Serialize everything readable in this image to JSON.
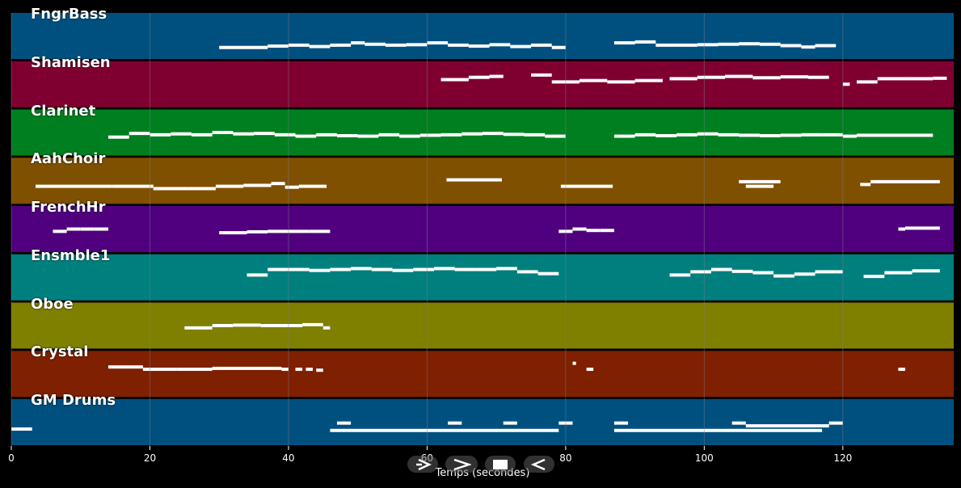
{
  "app": {
    "x_axis_title": "Temps (secondes)",
    "grid_color": "#7f7f8f"
  },
  "transport": {
    "buttons": [
      {
        "name": "step-back-icon",
        "glyph": "step"
      },
      {
        "name": "play-icon",
        "glyph": "play"
      },
      {
        "name": "stop-icon",
        "glyph": "stop"
      },
      {
        "name": "rewind-icon",
        "glyph": "rewind"
      }
    ]
  },
  "chart_data": {
    "type": "piano-roll",
    "xlabel": "Temps (secondes)",
    "xlim": [
      0,
      136
    ],
    "xticks": [
      0,
      20,
      40,
      60,
      80,
      100,
      120
    ],
    "grid": true,
    "tracks": [
      {
        "name": "FngrBass",
        "color": "#00507f",
        "notes": [
          [
            30,
            4,
            0.75
          ],
          [
            34,
            3,
            0.75
          ],
          [
            37,
            3,
            0.72
          ],
          [
            40,
            3,
            0.7
          ],
          [
            43,
            3,
            0.73
          ],
          [
            46,
            3,
            0.7
          ],
          [
            49,
            2,
            0.65
          ],
          [
            51,
            3,
            0.68
          ],
          [
            54,
            3,
            0.7
          ],
          [
            57,
            3,
            0.69
          ],
          [
            60,
            3,
            0.65
          ],
          [
            63,
            3,
            0.7
          ],
          [
            66,
            3,
            0.72
          ],
          [
            69,
            3,
            0.69
          ],
          [
            72,
            3,
            0.73
          ],
          [
            75,
            3,
            0.7
          ],
          [
            78,
            2,
            0.75
          ],
          [
            87,
            3,
            0.65
          ],
          [
            90,
            3,
            0.63
          ],
          [
            93,
            3,
            0.7
          ],
          [
            96,
            3,
            0.7
          ],
          [
            99,
            3,
            0.69
          ],
          [
            102,
            3,
            0.68
          ],
          [
            105,
            3,
            0.67
          ],
          [
            108,
            3,
            0.68
          ],
          [
            111,
            3,
            0.71
          ],
          [
            114,
            2,
            0.74
          ],
          [
            116,
            3,
            0.71
          ]
        ]
      },
      {
        "name": "Shamisen",
        "color": "#7f0030",
        "notes": [
          [
            62,
            4,
            0.4
          ],
          [
            66,
            3,
            0.35
          ],
          [
            69,
            2,
            0.33
          ],
          [
            75,
            3,
            0.3
          ],
          [
            78,
            4,
            0.45
          ],
          [
            82,
            4,
            0.42
          ],
          [
            86,
            4,
            0.45
          ],
          [
            90,
            4,
            0.42
          ],
          [
            95,
            4,
            0.38
          ],
          [
            99,
            4,
            0.35
          ],
          [
            103,
            4,
            0.33
          ],
          [
            107,
            4,
            0.36
          ],
          [
            111,
            4,
            0.34
          ],
          [
            115,
            3,
            0.35
          ],
          [
            120,
            1,
            0.5
          ],
          [
            122,
            3,
            0.45
          ],
          [
            125,
            4,
            0.38
          ],
          [
            129,
            4,
            0.38
          ],
          [
            133,
            2,
            0.37
          ]
        ]
      },
      {
        "name": "Clarinet",
        "color": "#007f20",
        "notes": [
          [
            14,
            3,
            0.6
          ],
          [
            17,
            3,
            0.52
          ],
          [
            20,
            3,
            0.55
          ],
          [
            23,
            3,
            0.53
          ],
          [
            26,
            3,
            0.55
          ],
          [
            29,
            3,
            0.5
          ],
          [
            32,
            3,
            0.53
          ],
          [
            35,
            3,
            0.52
          ],
          [
            38,
            3,
            0.55
          ],
          [
            41,
            3,
            0.58
          ],
          [
            44,
            3,
            0.55
          ],
          [
            47,
            3,
            0.57
          ],
          [
            50,
            3,
            0.58
          ],
          [
            53,
            3,
            0.55
          ],
          [
            56,
            3,
            0.58
          ],
          [
            59,
            3,
            0.56
          ],
          [
            62,
            3,
            0.55
          ],
          [
            65,
            3,
            0.53
          ],
          [
            68,
            3,
            0.52
          ],
          [
            71,
            3,
            0.54
          ],
          [
            74,
            3,
            0.55
          ],
          [
            77,
            3,
            0.58
          ],
          [
            87,
            3,
            0.58
          ],
          [
            90,
            3,
            0.55
          ],
          [
            93,
            3,
            0.57
          ],
          [
            96,
            3,
            0.55
          ],
          [
            99,
            3,
            0.53
          ],
          [
            102,
            3,
            0.55
          ],
          [
            105,
            3,
            0.56
          ],
          [
            108,
            3,
            0.57
          ],
          [
            111,
            3,
            0.56
          ],
          [
            114,
            3,
            0.55
          ],
          [
            117,
            3,
            0.55
          ],
          [
            120,
            2,
            0.58
          ],
          [
            122,
            11,
            0.56
          ]
        ]
      },
      {
        "name": "AahChoir",
        "color": "#7f5000",
        "notes": [
          [
            3.5,
            11,
            0.62
          ],
          [
            14.5,
            6,
            0.62
          ],
          [
            20.5,
            5,
            0.67
          ],
          [
            25.5,
            4,
            0.67
          ],
          [
            29.5,
            4,
            0.62
          ],
          [
            33.5,
            4,
            0.6
          ],
          [
            37.5,
            2,
            0.56
          ],
          [
            39.5,
            2,
            0.64
          ],
          [
            41.5,
            4,
            0.62
          ],
          [
            62.8,
            8,
            0.48
          ],
          [
            79.3,
            7.5,
            0.62
          ],
          [
            105,
            6,
            0.52
          ],
          [
            106,
            4,
            0.62
          ],
          [
            122.5,
            1.5,
            0.58
          ],
          [
            124,
            10,
            0.52
          ]
        ]
      },
      {
        "name": "FrenchHr",
        "color": "#50007f",
        "notes": [
          [
            6,
            2,
            0.55
          ],
          [
            8,
            2,
            0.5
          ],
          [
            10,
            2,
            0.5
          ],
          [
            12,
            2,
            0.5
          ],
          [
            30,
            4,
            0.58
          ],
          [
            34,
            3,
            0.56
          ],
          [
            37,
            3,
            0.55
          ],
          [
            40,
            3,
            0.55
          ],
          [
            43,
            3,
            0.55
          ],
          [
            79,
            2,
            0.55
          ],
          [
            81,
            2,
            0.5
          ],
          [
            83,
            2,
            0.53
          ],
          [
            85,
            2,
            0.53
          ],
          [
            128,
            1,
            0.5
          ],
          [
            129,
            5,
            0.48
          ]
        ]
      },
      {
        "name": "Ensmble1",
        "color": "#007f7f",
        "notes": [
          [
            34,
            3,
            0.45
          ],
          [
            37,
            3,
            0.33
          ],
          [
            40,
            3,
            0.33
          ],
          [
            43,
            3,
            0.35
          ],
          [
            46,
            3,
            0.33
          ],
          [
            49,
            3,
            0.31
          ],
          [
            52,
            3,
            0.33
          ],
          [
            55,
            3,
            0.35
          ],
          [
            58,
            3,
            0.33
          ],
          [
            61,
            3,
            0.31
          ],
          [
            64,
            3,
            0.33
          ],
          [
            67,
            3,
            0.33
          ],
          [
            70,
            3,
            0.31
          ],
          [
            73,
            3,
            0.38
          ],
          [
            76,
            3,
            0.42
          ],
          [
            95,
            3,
            0.45
          ],
          [
            98,
            3,
            0.38
          ],
          [
            101,
            3,
            0.33
          ],
          [
            104,
            3,
            0.37
          ],
          [
            107,
            3,
            0.4
          ],
          [
            110,
            3,
            0.47
          ],
          [
            113,
            3,
            0.43
          ],
          [
            116,
            3,
            0.38
          ],
          [
            119,
            1,
            0.38
          ],
          [
            123,
            3,
            0.48
          ],
          [
            126,
            4,
            0.4
          ],
          [
            130,
            4,
            0.36
          ]
        ]
      },
      {
        "name": "Oboe",
        "color": "#7f7f00",
        "notes": [
          [
            25,
            4,
            0.55
          ],
          [
            29,
            3,
            0.5
          ],
          [
            32,
            4,
            0.49
          ],
          [
            36,
            3,
            0.5
          ],
          [
            39,
            3,
            0.5
          ],
          [
            42,
            3,
            0.48
          ],
          [
            45,
            1,
            0.55
          ]
        ]
      },
      {
        "name": "Crystal",
        "color": "#7f2000",
        "notes": [
          [
            14,
            5,
            0.35
          ],
          [
            19,
            5,
            0.4
          ],
          [
            24,
            5,
            0.4
          ],
          [
            29,
            5,
            0.38
          ],
          [
            34,
            5,
            0.38
          ],
          [
            39,
            1,
            0.4
          ],
          [
            41,
            1,
            0.4
          ],
          [
            42.5,
            1,
            0.4
          ],
          [
            44,
            1,
            0.42
          ],
          [
            81,
            0.5,
            0.27
          ],
          [
            83,
            1,
            0.4
          ],
          [
            128,
            1,
            0.4
          ]
        ]
      },
      {
        "name": "GM Drums",
        "color": "#00507f",
        "notes": [
          [
            0,
            3,
            0.65
          ],
          [
            46,
            33,
            0.68
          ],
          [
            47,
            2,
            0.52
          ],
          [
            63,
            2,
            0.52
          ],
          [
            71,
            2,
            0.52
          ],
          [
            79,
            2,
            0.52
          ],
          [
            87,
            2,
            0.52
          ],
          [
            87,
            30,
            0.68
          ],
          [
            104,
            2,
            0.52
          ],
          [
            106,
            12,
            0.58
          ],
          [
            118,
            2,
            0.52
          ]
        ]
      }
    ]
  }
}
